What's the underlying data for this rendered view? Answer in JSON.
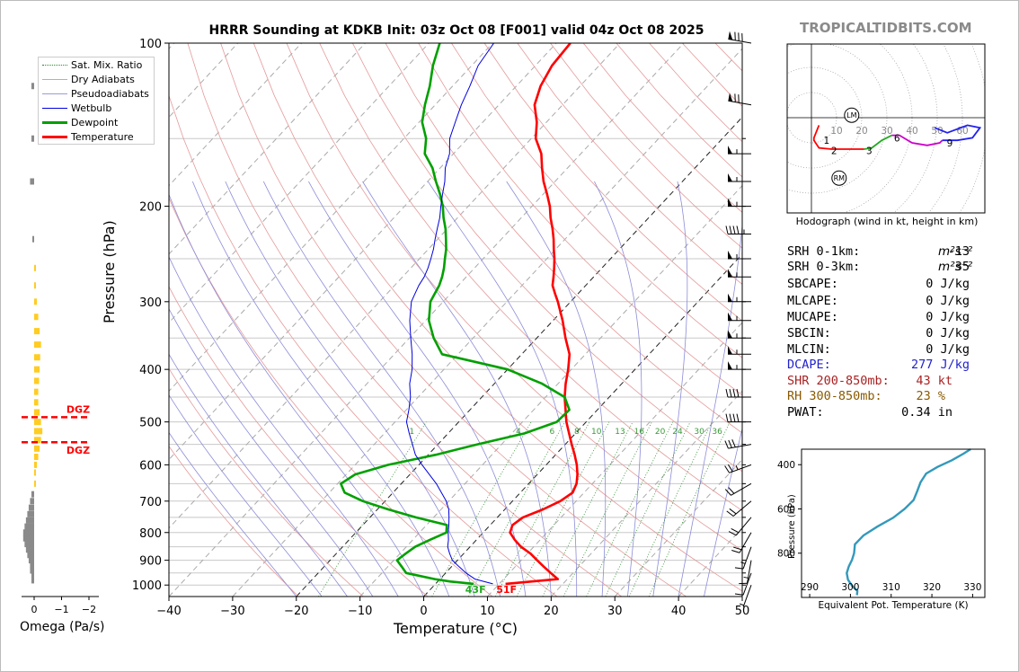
{
  "title": "HRRR Sounding at KDKB Init: 03z Oct 08 [F001] valid 04z Oct 08 2025",
  "brand": "TROPICALTIDBITS.COM",
  "chart_data": {
    "type": "skewt",
    "ylabel": "Pressure (hPa)",
    "xlabel": "Temperature (°C)",
    "pressure_ticks": [
      100,
      200,
      300,
      400,
      500,
      600,
      700,
      800,
      900,
      1000
    ],
    "temp_ticks": [
      -40,
      -30,
      -20,
      -10,
      0,
      10,
      20,
      30,
      40,
      50
    ],
    "xlim": [
      -40,
      50
    ],
    "ylim": [
      1050,
      100
    ],
    "legend": [
      "Sat. Mix. Ratio",
      "Dry Adiabats",
      "Pseudoadiabats",
      "Wetbulb",
      "Dewpoint",
      "Temperature"
    ],
    "mixing_ratio_labels": [
      "1",
      "4",
      "6",
      "8",
      "10",
      "13",
      "16",
      "20",
      "24",
      "30",
      "36"
    ],
    "surface_labels": {
      "dewpoint": "43F",
      "temperature": "51F"
    },
    "dgz_label": "DGZ",
    "series": [
      {
        "name": "Temperature",
        "color": "#ff0000",
        "pressure": [
          995,
          975,
          950,
          925,
          900,
          875,
          850,
          825,
          800,
          775,
          750,
          725,
          700,
          675,
          650,
          625,
          600,
          575,
          550,
          525,
          500,
          475,
          450,
          425,
          400,
          375,
          350,
          325,
          300,
          290,
          280,
          270,
          260,
          250,
          240,
          230,
          220,
          210,
          200,
          190,
          180,
          170,
          160,
          150,
          140,
          130,
          120,
          110,
          100
        ],
        "values": [
          11,
          18.5,
          16.5,
          14.5,
          12.5,
          10.5,
          8,
          6,
          4.2,
          3.5,
          4,
          6,
          7.5,
          8.2,
          7.5,
          6.3,
          4.8,
          3,
          1,
          -1,
          -3.1,
          -5,
          -7,
          -8.8,
          -10.5,
          -12.5,
          -15.5,
          -18.5,
          -22,
          -23.6,
          -25.2,
          -26.3,
          -27.5,
          -28.8,
          -30.3,
          -31.8,
          -33.5,
          -35.4,
          -37.2,
          -39.4,
          -41.8,
          -44,
          -46.2,
          -49.3,
          -51.5,
          -54.4,
          -56.2,
          -57.4,
          -57.8
        ]
      },
      {
        "name": "Dewpoint",
        "color": "#00a000",
        "pressure": [
          995,
          985,
          975,
          950,
          925,
          900,
          875,
          850,
          825,
          800,
          775,
          750,
          725,
          700,
          675,
          650,
          625,
          600,
          575,
          550,
          525,
          500,
          475,
          450,
          425,
          400,
          375,
          350,
          325,
          300,
          290,
          280,
          270,
          260,
          250,
          240,
          230,
          220,
          210,
          200,
          190,
          180,
          170,
          160,
          150,
          140,
          130,
          120,
          110,
          100
        ],
        "values": [
          6,
          2,
          -0.8,
          -6.2,
          -7.8,
          -9.5,
          -9.1,
          -8.6,
          -7.3,
          -5.8,
          -6.8,
          -12.8,
          -18.3,
          -23.5,
          -27.6,
          -29.5,
          -28.6,
          -24.8,
          -18.8,
          -13.8,
          -8,
          -4.6,
          -4.4,
          -7,
          -12.5,
          -20,
          -32.5,
          -36.2,
          -39.5,
          -42,
          -42.5,
          -43,
          -43.8,
          -44.8,
          -46,
          -47.2,
          -48.7,
          -50.3,
          -52.2,
          -54,
          -56.2,
          -58.7,
          -61.2,
          -64.5,
          -66.5,
          -69.5,
          -71.6,
          -73.6,
          -76.1,
          -78.3
        ]
      },
      {
        "name": "Wetbulb",
        "color": "#0000dd",
        "pressure": [
          995,
          975,
          950,
          925,
          900,
          875,
          850,
          825,
          800,
          775,
          750,
          725,
          700,
          650,
          600,
          575,
          550,
          525,
          500,
          475,
          450,
          425,
          400,
          375,
          350,
          325,
          300,
          290,
          280,
          270,
          260,
          250,
          240,
          230,
          220,
          210,
          200,
          190,
          180,
          170,
          160,
          150,
          140,
          130,
          120,
          110,
          100
        ],
        "values": [
          9,
          5.5,
          3.2,
          1.2,
          -0.8,
          -2.2,
          -3.5,
          -4.4,
          -5.5,
          -6.5,
          -7.6,
          -8.8,
          -10.4,
          -14.5,
          -19.5,
          -22,
          -24,
          -26.1,
          -28.2,
          -29.6,
          -31.2,
          -33.3,
          -35,
          -37.2,
          -39.8,
          -42.5,
          -45,
          -45.6,
          -46.2,
          -46.6,
          -47.3,
          -48.2,
          -49.2,
          -50.4,
          -51.6,
          -52.8,
          -54.3,
          -55.8,
          -57.3,
          -59.2,
          -60.6,
          -62.8,
          -64.3,
          -65.9,
          -67.3,
          -69,
          -69.8
        ]
      }
    ],
    "omega": {
      "label": "Omega (Pa/s)",
      "ticks": [
        "0",
        "−1",
        "−2"
      ],
      "dgz_top_hpa": 490,
      "dgz_bottom_hpa": 545,
      "bars": [
        {
          "p": 120,
          "v": 0.1,
          "c": "gray"
        },
        {
          "p": 150,
          "v": 0.1,
          "c": "gray"
        },
        {
          "p": 180,
          "v": 0.15,
          "c": "gray"
        },
        {
          "p": 230,
          "v": 0.05,
          "c": "gray"
        },
        {
          "p": 260,
          "v": -0.02,
          "c": "gold"
        },
        {
          "p": 280,
          "v": -0.05,
          "c": "gold"
        },
        {
          "p": 300,
          "v": -0.1,
          "c": "gold"
        },
        {
          "p": 320,
          "v": -0.15,
          "c": "gold"
        },
        {
          "p": 340,
          "v": -0.2,
          "c": "gold"
        },
        {
          "p": 360,
          "v": -0.25,
          "c": "gold"
        },
        {
          "p": 380,
          "v": -0.22,
          "c": "gold"
        },
        {
          "p": 400,
          "v": -0.2,
          "c": "gold"
        },
        {
          "p": 420,
          "v": -0.18,
          "c": "gold"
        },
        {
          "p": 440,
          "v": -0.15,
          "c": "gold"
        },
        {
          "p": 460,
          "v": -0.15,
          "c": "gold"
        },
        {
          "p": 480,
          "v": -0.2,
          "c": "gold"
        },
        {
          "p": 500,
          "v": -0.25,
          "c": "gold"
        },
        {
          "p": 520,
          "v": -0.3,
          "c": "gold"
        },
        {
          "p": 540,
          "v": -0.25,
          "c": "gold"
        },
        {
          "p": 560,
          "v": -0.2,
          "c": "gold"
        },
        {
          "p": 580,
          "v": -0.15,
          "c": "gold"
        },
        {
          "p": 600,
          "v": -0.1,
          "c": "gold"
        },
        {
          "p": 620,
          "v": -0.05,
          "c": "gold"
        },
        {
          "p": 650,
          "v": -0.02,
          "c": "gold"
        },
        {
          "p": 680,
          "v": 0.1,
          "c": "gray"
        },
        {
          "p": 700,
          "v": 0.15,
          "c": "gray"
        },
        {
          "p": 720,
          "v": 0.2,
          "c": "gray"
        },
        {
          "p": 740,
          "v": 0.25,
          "c": "gray"
        },
        {
          "p": 760,
          "v": 0.3,
          "c": "gray"
        },
        {
          "p": 780,
          "v": 0.35,
          "c": "gray"
        },
        {
          "p": 800,
          "v": 0.4,
          "c": "gray"
        },
        {
          "p": 820,
          "v": 0.4,
          "c": "gray"
        },
        {
          "p": 840,
          "v": 0.35,
          "c": "gray"
        },
        {
          "p": 860,
          "v": 0.3,
          "c": "gray"
        },
        {
          "p": 880,
          "v": 0.25,
          "c": "gray"
        },
        {
          "p": 900,
          "v": 0.2,
          "c": "gray"
        },
        {
          "p": 920,
          "v": 0.15,
          "c": "gray"
        },
        {
          "p": 940,
          "v": 0.15,
          "c": "gray"
        },
        {
          "p": 960,
          "v": 0.1,
          "c": "gray"
        },
        {
          "p": 980,
          "v": 0.1,
          "c": "gray"
        }
      ]
    },
    "hodograph": {
      "caption": "Hodograph (wind in kt, height in km)",
      "ring_labels": [
        "10",
        "20",
        "30",
        "40",
        "50",
        "60"
      ],
      "height_labels": [
        "1",
        "2",
        "3",
        "6",
        "9"
      ],
      "markers": [
        "LM",
        "RM"
      ],
      "segments": [
        {
          "color": "#ff0000",
          "u": [
            3,
            1,
            1,
            3,
            8,
            15,
            21
          ],
          "v": [
            -3,
            -8,
            -9,
            -12,
            -12.5,
            -12.5,
            -12.5
          ]
        },
        {
          "color": "#22aa22",
          "u": [
            21,
            24,
            28,
            32
          ],
          "v": [
            -12.5,
            -12,
            -9,
            -7
          ]
        },
        {
          "color": "#cc00cc",
          "u": [
            32,
            35,
            40,
            46,
            51,
            52
          ],
          "v": [
            -7,
            -7,
            -10,
            -11,
            -10,
            -9
          ]
        },
        {
          "color": "#2222ee",
          "u": [
            52,
            58,
            64,
            67,
            62,
            54,
            49
          ],
          "v": [
            -9,
            -9,
            -8,
            -4,
            -3,
            -6,
            -4
          ]
        }
      ],
      "lm_point": [
        16,
        1
      ],
      "rm_point": [
        11,
        -24
      ],
      "height_points": [
        {
          "label": "1",
          "u": 6,
          "v": -9
        },
        {
          "label": "2",
          "u": 9,
          "v": -13
        },
        {
          "label": "3",
          "u": 23,
          "v": -13
        },
        {
          "label": "6",
          "u": 34,
          "v": -8
        },
        {
          "label": "9",
          "u": 55,
          "v": -10
        }
      ]
    },
    "theta_e": {
      "xlabel": "Equivalent Pot. Temperature (K)",
      "ylabel": "Pressure (hPa)",
      "x_ticks": [
        290,
        300,
        310,
        320,
        330
      ],
      "y_ticks": [
        400,
        600,
        800
      ],
      "xlim": [
        288,
        333
      ],
      "ylim": [
        1000,
        330
      ],
      "pressure": [
        990,
        970,
        950,
        920,
        890,
        860,
        830,
        800,
        760,
        720,
        680,
        640,
        600,
        560,
        520,
        480,
        440,
        410,
        380,
        350,
        330
      ],
      "values": [
        301.6,
        301.7,
        300.5,
        299.4,
        299.1,
        299.6,
        300.4,
        300.9,
        301.1,
        303.2,
        306.6,
        310.5,
        313.3,
        315.5,
        316.4,
        317.2,
        318.6,
        321.4,
        324.9,
        327.8,
        329.5
      ]
    },
    "wind_barbs": [
      {
        "p": 100,
        "dir": 280,
        "spd": 80
      },
      {
        "p": 130,
        "dir": 280,
        "spd": 70
      },
      {
        "p": 160,
        "dir": 270,
        "spd": 55
      },
      {
        "p": 180,
        "dir": 270,
        "spd": 55
      },
      {
        "p": 200,
        "dir": 270,
        "spd": 55
      },
      {
        "p": 225,
        "dir": 270,
        "spd": 45
      },
      {
        "p": 250,
        "dir": 270,
        "spd": 55
      },
      {
        "p": 270,
        "dir": 270,
        "spd": 55
      },
      {
        "p": 300,
        "dir": 270,
        "spd": 55
      },
      {
        "p": 325,
        "dir": 270,
        "spd": 55
      },
      {
        "p": 350,
        "dir": 270,
        "spd": 55
      },
      {
        "p": 375,
        "dir": 270,
        "spd": 55
      },
      {
        "p": 400,
        "dir": 270,
        "spd": 55
      },
      {
        "p": 450,
        "dir": 270,
        "spd": 40
      },
      {
        "p": 500,
        "dir": 270,
        "spd": 40
      },
      {
        "p": 550,
        "dir": 260,
        "spd": 30
      },
      {
        "p": 600,
        "dir": 250,
        "spd": 25
      },
      {
        "p": 650,
        "dir": 240,
        "spd": 20
      },
      {
        "p": 700,
        "dir": 230,
        "spd": 20
      },
      {
        "p": 750,
        "dir": 220,
        "spd": 20
      },
      {
        "p": 800,
        "dir": 210,
        "spd": 20
      },
      {
        "p": 850,
        "dir": 200,
        "spd": 15
      },
      {
        "p": 900,
        "dir": 190,
        "spd": 15
      },
      {
        "p": 950,
        "dir": 200,
        "spd": 10
      },
      {
        "p": 1000,
        "dir": 200,
        "spd": 5
      }
    ]
  },
  "params": [
    {
      "label": "SRH 0-1km:",
      "value": "-13",
      "unit": "m²s⁻²",
      "color": "#000000"
    },
    {
      "label": "SRH 0-3km:",
      "value": "35",
      "unit": "m²s⁻²",
      "color": "#000000"
    },
    {
      "label": "SBCAPE:",
      "value": "0 J/kg",
      "unit": "",
      "color": "#000000"
    },
    {
      "label": "MLCAPE:",
      "value": "0 J/kg",
      "unit": "",
      "color": "#000000"
    },
    {
      "label": "MUCAPE:",
      "value": "0 J/kg",
      "unit": "",
      "color": "#000000"
    },
    {
      "label": "SBCIN:",
      "value": "0 J/kg",
      "unit": "",
      "color": "#000000"
    },
    {
      "label": "MLCIN:",
      "value": "0 J/kg",
      "unit": "",
      "color": "#000000"
    },
    {
      "label": "DCAPE:",
      "value": "277 J/kg",
      "unit": "",
      "color": "#2222cc"
    },
    {
      "label": "SHR 200-850mb:",
      "value": "43 kt",
      "unit": "",
      "color": "#aa2222"
    },
    {
      "label": "RH 300-850mb:",
      "value": "23 %",
      "unit": "",
      "color": "#8a5a00"
    },
    {
      "label": "PWAT:",
      "value": "0.34 in",
      "unit": "",
      "color": "#000000"
    }
  ]
}
